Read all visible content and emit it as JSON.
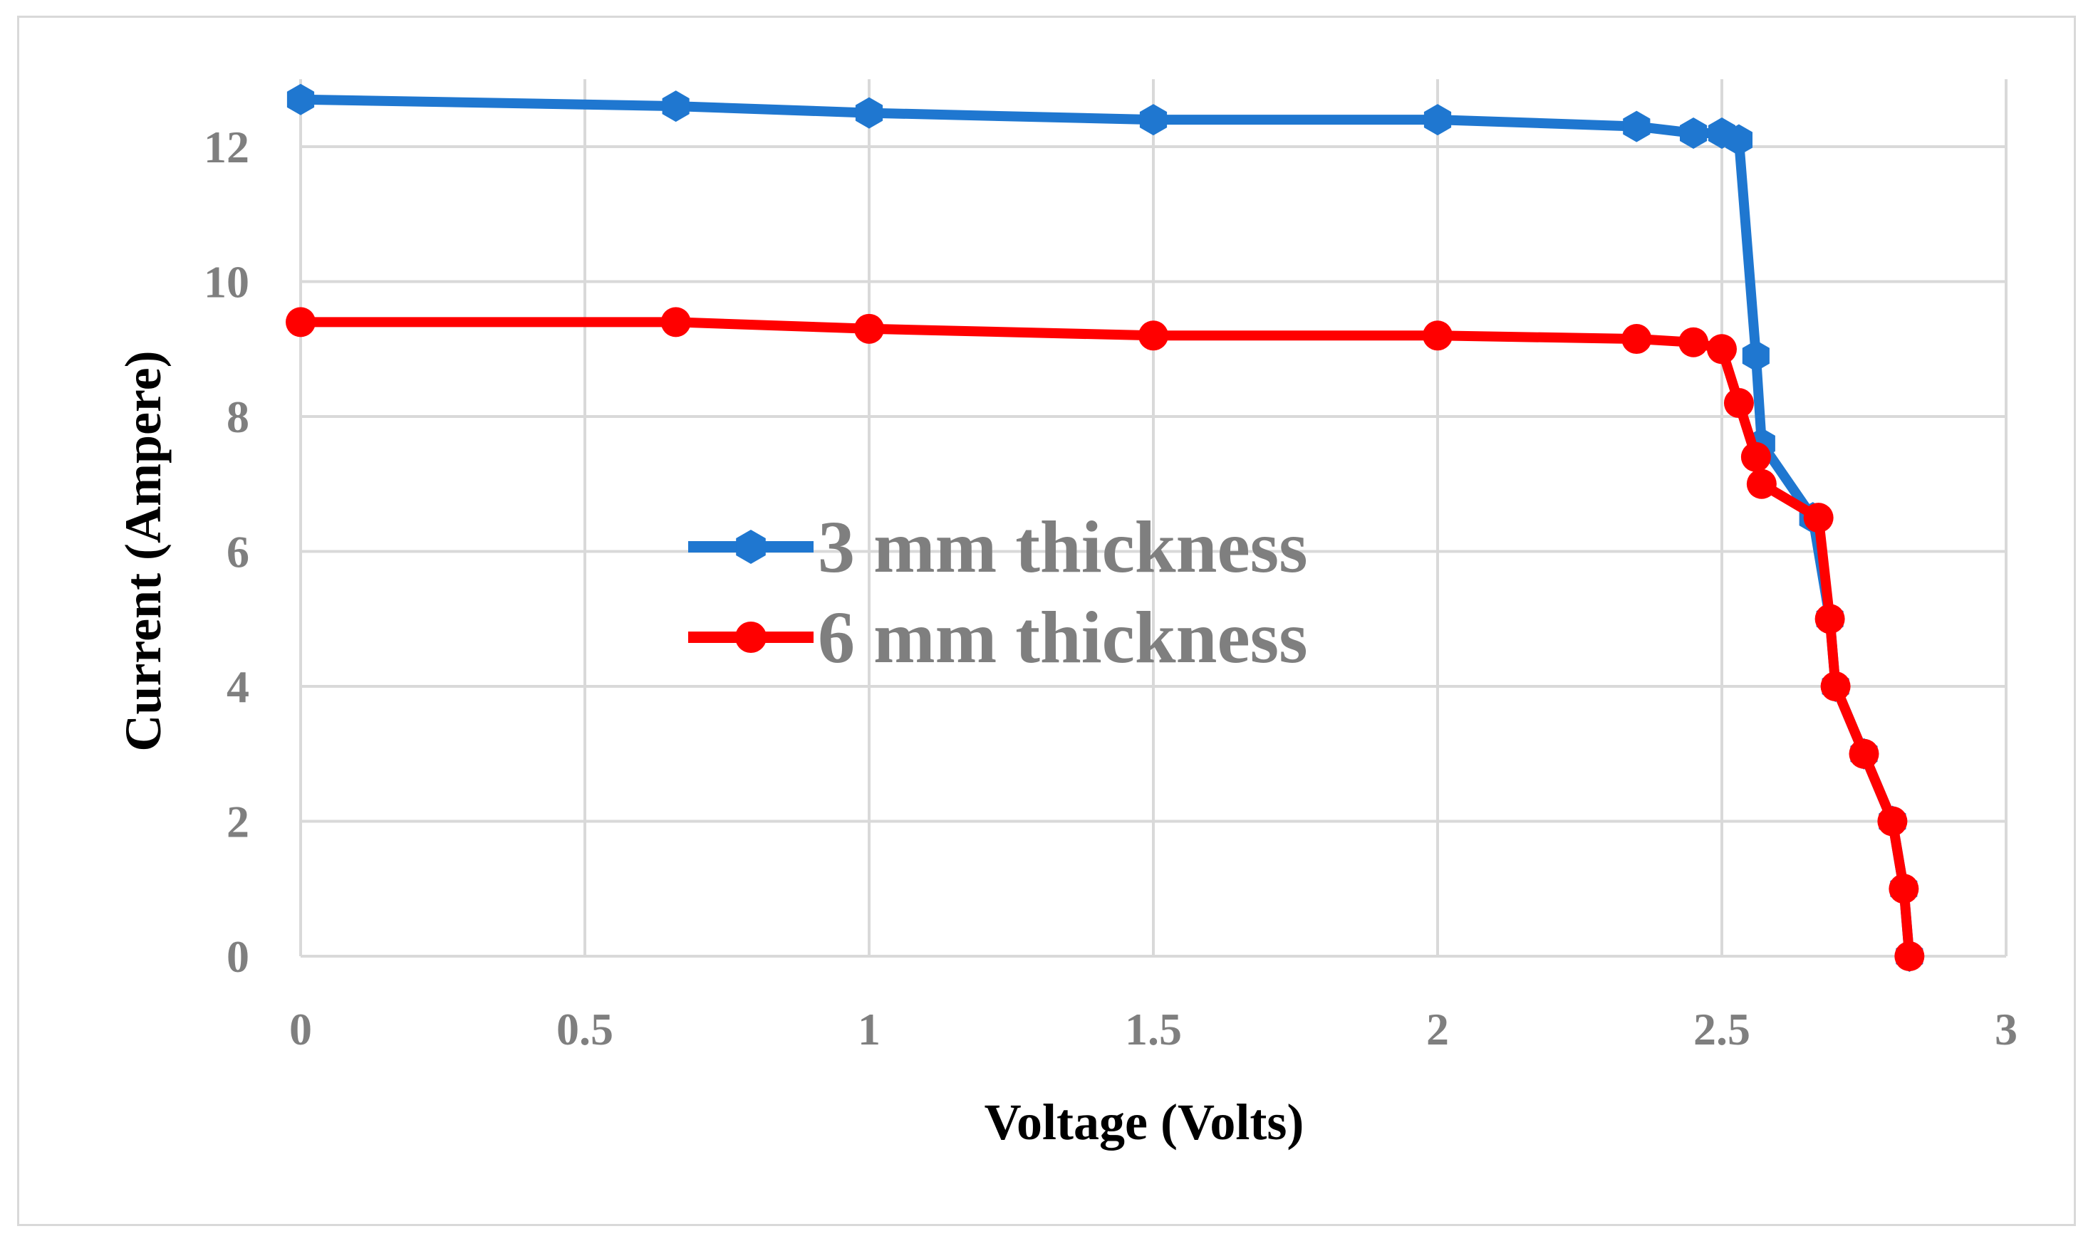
{
  "chart_data": {
    "type": "line",
    "title": "",
    "xlabel": "Voltage (Volts)",
    "ylabel": "Current (Ampere)",
    "xlim": [
      0,
      3
    ],
    "ylim": [
      0,
      13
    ],
    "x_ticks": [
      "0",
      "0.5",
      "1",
      "1.5",
      "2",
      "2.5",
      "3"
    ],
    "y_ticks": [
      "0",
      "2",
      "4",
      "6",
      "8",
      "10",
      "12"
    ],
    "x_tick_values": [
      0,
      0.5,
      1,
      1.5,
      2,
      2.5,
      3
    ],
    "y_tick_values": [
      0,
      2,
      4,
      6,
      8,
      10,
      12
    ],
    "grid": true,
    "legend_position": "center-left",
    "series": [
      {
        "name": "3 mm thickness",
        "color": "#1f77d0",
        "marker": "hexagon",
        "points": [
          [
            0,
            12.7
          ],
          [
            0.66,
            12.6
          ],
          [
            1.0,
            12.5
          ],
          [
            1.5,
            12.4
          ],
          [
            2.0,
            12.4
          ],
          [
            2.35,
            12.3
          ],
          [
            2.45,
            12.2
          ],
          [
            2.5,
            12.2
          ],
          [
            2.53,
            12.1
          ],
          [
            2.56,
            8.9
          ],
          [
            2.57,
            7.6
          ],
          [
            2.66,
            6.5
          ],
          [
            2.69,
            5.0
          ],
          [
            2.7,
            4.0
          ],
          [
            2.75,
            3.0
          ],
          [
            2.8,
            2.0
          ],
          [
            2.82,
            1.0
          ],
          [
            2.83,
            0.0
          ]
        ]
      },
      {
        "name": "6 mm thickness",
        "color": "#ff0000",
        "marker": "circle",
        "points": [
          [
            0,
            9.4
          ],
          [
            0.66,
            9.4
          ],
          [
            1.0,
            9.3
          ],
          [
            1.5,
            9.2
          ],
          [
            2.0,
            9.2
          ],
          [
            2.35,
            9.15
          ],
          [
            2.45,
            9.1
          ],
          [
            2.5,
            9.0
          ],
          [
            2.53,
            8.2
          ],
          [
            2.56,
            7.4
          ],
          [
            2.57,
            7.0
          ],
          [
            2.67,
            6.5
          ],
          [
            2.69,
            5.0
          ],
          [
            2.7,
            4.0
          ],
          [
            2.75,
            3.0
          ],
          [
            2.8,
            2.0
          ],
          [
            2.82,
            1.0
          ],
          [
            2.83,
            0.0
          ]
        ]
      }
    ]
  }
}
